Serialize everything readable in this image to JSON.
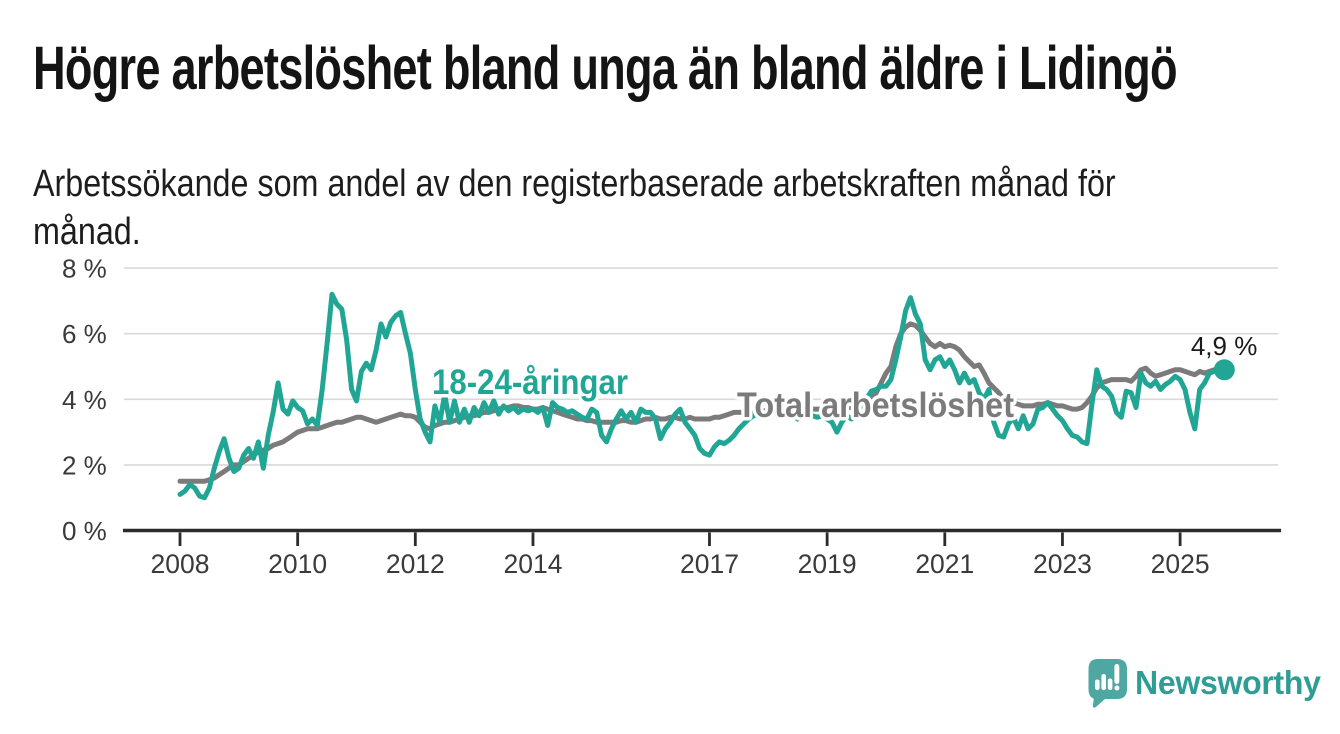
{
  "header": {
    "title": "Högre arbetslöshet bland unga än bland äldre i Lidingö",
    "subtitle": "Arbetssökande som andel av den registerbaserade arbetskraften månad för månad."
  },
  "branding": {
    "wordmark": "Newsworthy",
    "logo_icon": "newsworthy-speech-bubble-bar-chart-icon",
    "icon_color": "#4ea7a1",
    "word_color": "#2e9d96"
  },
  "chart_data": {
    "type": "line",
    "title": "Högre arbetslöshet bland unga än bland äldre i Lidingö",
    "subtitle": "Arbetssökande som andel av den registerbaserade arbetskraften månad för månad.",
    "unit": "%",
    "x_start": {
      "year": 2008,
      "month": 1
    },
    "x_end": {
      "year": 2025,
      "month": 9
    },
    "points_per_year": 12,
    "x_tick_years": [
      2008,
      2010,
      2012,
      2014,
      2017,
      2019,
      2021,
      2023,
      2025
    ],
    "y_ticks": [
      {
        "value": 0,
        "label": "0 %"
      },
      {
        "value": 2,
        "label": "2 %"
      },
      {
        "value": 4,
        "label": "4 %"
      },
      {
        "value": 6,
        "label": "6 %"
      },
      {
        "value": 8,
        "label": "8 %"
      }
    ],
    "ylim": [
      0,
      8
    ],
    "grid": "horizontal",
    "legend_position": "inline-labels",
    "colors": {
      "youth": "#21a695",
      "total": "#7b7b7b",
      "axis": "#2b2b2b",
      "gridline": "#d9d9d9",
      "tick_text": "#3a3a3a",
      "annotation_text": "#1b1b1b"
    },
    "series": [
      {
        "id": "total",
        "name": "Total arbetslöshet",
        "color": "#7b7b7b",
        "values": [
          1.5,
          1.5,
          1.5,
          1.5,
          1.5,
          1.5,
          1.55,
          1.6,
          1.7,
          1.8,
          1.9,
          2.0,
          2.0,
          2.1,
          2.2,
          2.3,
          2.4,
          2.45,
          2.5,
          2.6,
          2.65,
          2.7,
          2.8,
          2.9,
          3.0,
          3.05,
          3.1,
          3.1,
          3.1,
          3.15,
          3.2,
          3.25,
          3.3,
          3.3,
          3.35,
          3.4,
          3.45,
          3.45,
          3.4,
          3.35,
          3.3,
          3.35,
          3.4,
          3.45,
          3.5,
          3.55,
          3.5,
          3.5,
          3.45,
          3.3,
          3.15,
          3.1,
          3.2,
          3.25,
          3.3,
          3.3,
          3.35,
          3.4,
          3.45,
          3.5,
          3.5,
          3.55,
          3.6,
          3.6,
          3.65,
          3.7,
          3.75,
          3.75,
          3.8,
          3.8,
          3.75,
          3.75,
          3.7,
          3.7,
          3.75,
          3.7,
          3.65,
          3.6,
          3.55,
          3.5,
          3.45,
          3.4,
          3.4,
          3.35,
          3.35,
          3.3,
          3.3,
          3.3,
          3.3,
          3.3,
          3.35,
          3.35,
          3.3,
          3.3,
          3.35,
          3.4,
          3.4,
          3.45,
          3.4,
          3.4,
          3.45,
          3.45,
          3.4,
          3.4,
          3.45,
          3.4,
          3.4,
          3.4,
          3.4,
          3.45,
          3.45,
          3.5,
          3.55,
          3.6,
          3.6,
          3.6,
          3.65,
          3.65,
          3.65,
          3.65,
          3.65,
          3.65,
          3.6,
          3.6,
          3.6,
          3.65,
          3.65,
          3.65,
          3.7,
          3.7,
          3.7,
          3.7,
          3.7,
          3.7,
          3.7,
          3.7,
          3.75,
          3.75,
          3.8,
          3.85,
          3.9,
          4.0,
          4.2,
          4.5,
          4.8,
          5.0,
          5.6,
          6.0,
          6.2,
          6.3,
          6.25,
          6.1,
          5.9,
          5.7,
          5.6,
          5.7,
          5.6,
          5.65,
          5.6,
          5.5,
          5.3,
          5.15,
          5.0,
          5.05,
          4.8,
          4.5,
          4.35,
          4.2,
          4.0,
          3.95,
          3.9,
          3.85,
          3.8,
          3.8,
          3.8,
          3.85,
          3.85,
          3.9,
          3.85,
          3.8,
          3.8,
          3.75,
          3.7,
          3.7,
          3.75,
          3.9,
          4.1,
          4.35,
          4.5,
          4.55,
          4.6,
          4.6,
          4.6,
          4.6,
          4.55,
          4.7,
          4.9,
          4.95,
          4.8,
          4.7,
          4.75,
          4.8,
          4.85,
          4.9,
          4.9,
          4.85,
          4.8,
          4.75,
          4.85,
          4.8,
          4.85,
          4.9,
          4.85
        ]
      },
      {
        "id": "youth",
        "name": "18-24-åringar",
        "color": "#21a695",
        "values": [
          1.1,
          1.2,
          1.4,
          1.3,
          1.05,
          1.0,
          1.3,
          1.9,
          2.4,
          2.8,
          2.2,
          1.8,
          1.9,
          2.3,
          2.5,
          2.2,
          2.7,
          1.9,
          2.9,
          3.6,
          4.5,
          3.7,
          3.55,
          3.95,
          3.75,
          3.65,
          3.25,
          3.4,
          3.2,
          4.3,
          5.7,
          7.2,
          6.9,
          6.75,
          5.8,
          4.3,
          3.95,
          4.85,
          5.1,
          4.9,
          5.5,
          6.3,
          5.9,
          6.35,
          6.55,
          6.65,
          6.0,
          5.4,
          4.3,
          3.4,
          3.0,
          2.7,
          3.8,
          3.3,
          4.15,
          3.3,
          3.95,
          3.3,
          3.7,
          3.3,
          3.75,
          3.5,
          3.9,
          3.6,
          3.95,
          3.55,
          3.8,
          3.65,
          3.75,
          3.6,
          3.7,
          3.65,
          3.7,
          3.6,
          3.75,
          3.2,
          3.9,
          3.75,
          3.7,
          3.6,
          3.65,
          3.55,
          3.45,
          3.4,
          3.7,
          3.6,
          2.9,
          2.7,
          3.1,
          3.4,
          3.65,
          3.4,
          3.6,
          3.3,
          3.7,
          3.6,
          3.6,
          3.4,
          2.8,
          3.1,
          3.3,
          3.55,
          3.7,
          3.3,
          3.1,
          2.9,
          2.5,
          2.35,
          2.3,
          2.55,
          2.7,
          2.65,
          2.75,
          2.9,
          3.1,
          3.25,
          3.4,
          3.5,
          3.55,
          3.6,
          3.5,
          3.65,
          3.5,
          3.6,
          3.45,
          3.55,
          3.4,
          3.5,
          3.6,
          3.5,
          3.45,
          3.5,
          3.4,
          3.3,
          3.0,
          3.3,
          3.5,
          3.4,
          3.6,
          3.8,
          4.0,
          4.25,
          4.3,
          4.4,
          4.4,
          4.6,
          5.2,
          5.9,
          6.7,
          7.1,
          6.6,
          6.3,
          5.2,
          4.9,
          5.2,
          5.3,
          5.0,
          5.2,
          4.9,
          4.5,
          4.8,
          4.5,
          4.6,
          4.2,
          4.0,
          4.3,
          3.3,
          2.9,
          2.85,
          3.25,
          3.45,
          3.1,
          3.5,
          3.1,
          3.25,
          3.7,
          3.75,
          3.9,
          3.7,
          3.5,
          3.35,
          3.1,
          2.9,
          2.85,
          2.7,
          2.65,
          3.85,
          4.9,
          4.4,
          4.3,
          4.1,
          3.6,
          3.45,
          4.25,
          4.2,
          3.75,
          4.8,
          4.5,
          4.4,
          4.55,
          4.3,
          4.45,
          4.55,
          4.7,
          4.6,
          4.3,
          3.6,
          3.1,
          4.3,
          4.5,
          4.8,
          4.85,
          4.9
        ]
      }
    ],
    "end_annotation": {
      "text": "4,9 %",
      "value": 4.9,
      "series": "18-24-åringar"
    }
  }
}
